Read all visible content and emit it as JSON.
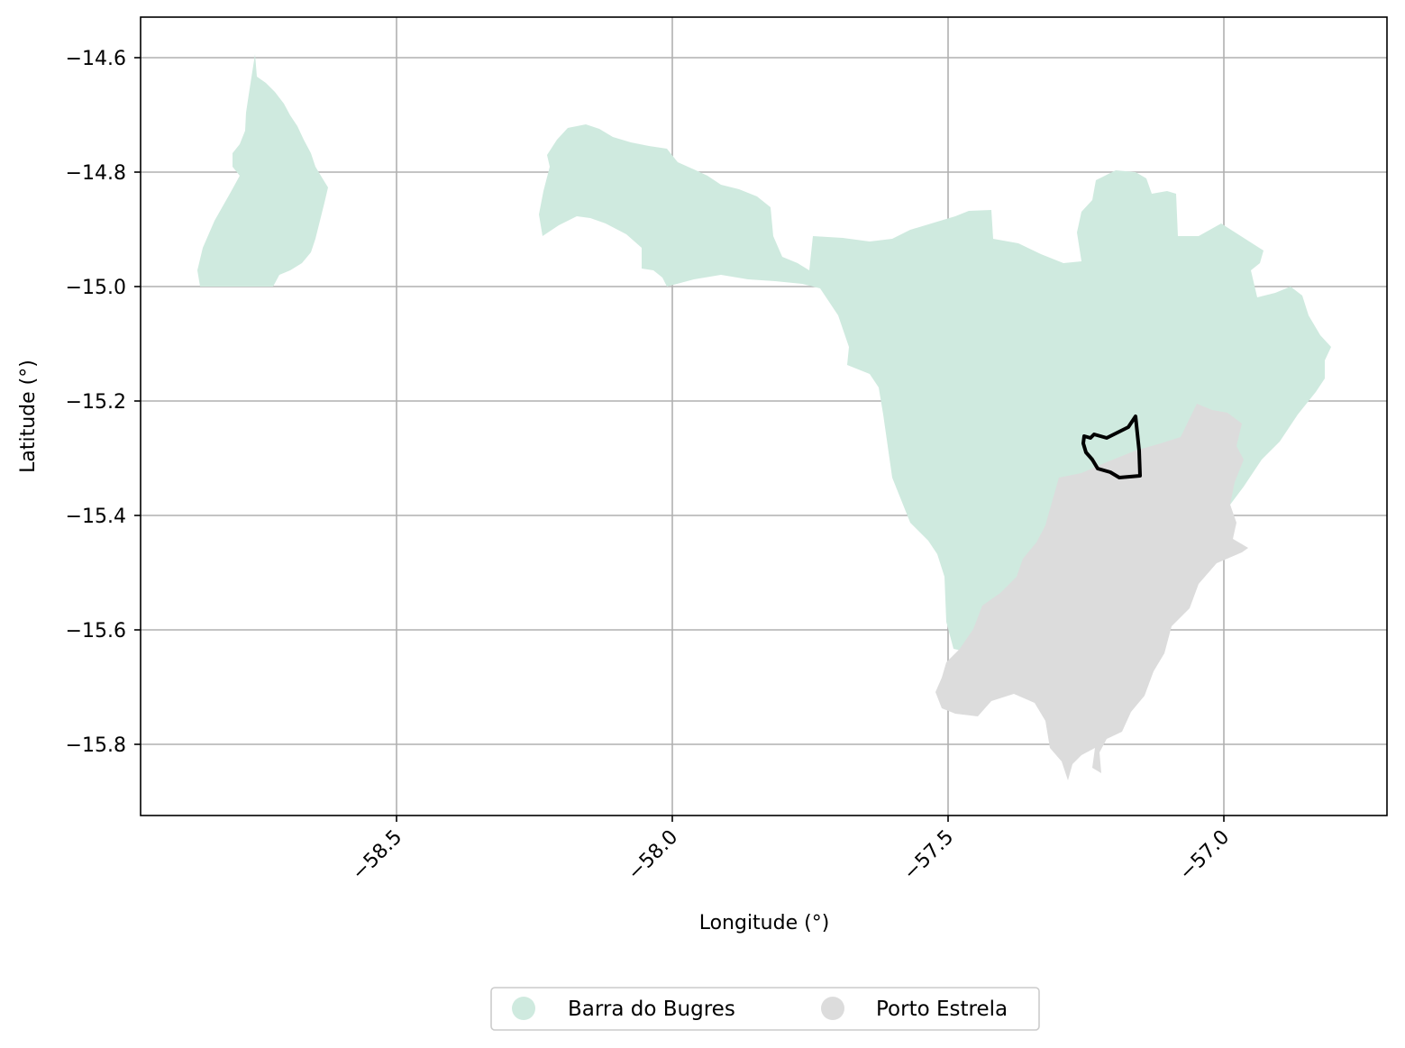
{
  "map": {
    "xlabel": "Longitude (°)",
    "ylabel": "Latitude (°)",
    "x_ticks": [
      "−58.5",
      "−58.0",
      "−57.5",
      "−57.0"
    ],
    "y_ticks": [
      "−14.6",
      "−14.8",
      "−15.0",
      "−15.2",
      "−15.4",
      "−15.6",
      "−15.8"
    ],
    "xlim": [
      -58.95,
      -56.78
    ],
    "ylim": [
      -15.93,
      -14.53
    ],
    "grid": true,
    "legend_position": "bottom-center, below axes",
    "legend": [
      {
        "label": "Barra do Bugres",
        "color": "#cfeadf"
      },
      {
        "label": "Porto Estrela",
        "color": "#dcdcdc"
      }
    ],
    "highlight_outline_color": "#000000"
  }
}
